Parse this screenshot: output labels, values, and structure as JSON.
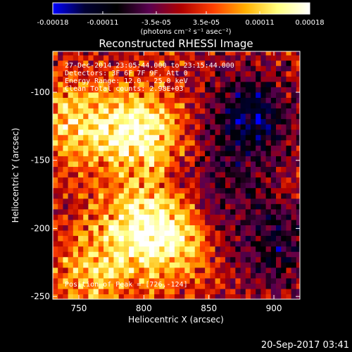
{
  "colorbar": {
    "tick_labels": [
      "-0.00018",
      "-0.00011",
      "-3.5e-05",
      "3.5e-05",
      "0.00011",
      "0.00018"
    ],
    "tick_values": [
      -0.00018,
      -0.00011,
      -3.5e-05,
      3.5e-05,
      0.00011,
      0.00018
    ],
    "range": [
      -0.00018,
      0.00018
    ],
    "unit_label": "(photons cm⁻² s⁻¹ asec⁻²)",
    "colors": [
      "#0000ff",
      "#000033",
      "#000000",
      "#5a0050",
      "#b00000",
      "#ff4000",
      "#ffb000",
      "#ffff80",
      "#ffffff"
    ]
  },
  "chart_data": {
    "type": "heatmap",
    "title": "Reconstructed RHESSI Image",
    "xlabel": "Heliocentric X (arcsec)",
    "ylabel": "Heliocentric Y (arcsec)",
    "xlim": [
      730,
      920
    ],
    "ylim": [
      -252,
      -70
    ],
    "x_ticks": [
      750,
      800,
      850,
      900
    ],
    "y_ticks": [
      -100,
      -150,
      -200,
      -250
    ],
    "x_tick_labels": [
      "750",
      "800",
      "850",
      "900"
    ],
    "y_tick_labels": [
      "-100",
      "-150",
      "-200",
      "-250"
    ],
    "annotations": [
      "27-Dec-2014 23:05:44.000 to 23:15:44.000",
      "Detectors: 3F 6F 7F 9F, Att 0",
      "Energy Range: 12.0 - 25.0 keV",
      "Clean     Total counts: 2.98E+03"
    ],
    "peak_label": "Position of Peak = [726,-124]",
    "peak": [
      726,
      -124
    ],
    "intensity_features": [
      {
        "x": 795,
        "y": -130,
        "level": 0.00016
      },
      {
        "x": 745,
        "y": -125,
        "level": 0.00012
      },
      {
        "x": 815,
        "y": -210,
        "level": 0.00014
      },
      {
        "x": 760,
        "y": -235,
        "level": 0.0001
      },
      {
        "x": 790,
        "y": -195,
        "level": 9e-05
      },
      {
        "x": 880,
        "y": -120,
        "level": -0.00013
      },
      {
        "x": 900,
        "y": -215,
        "level": -9e-05
      },
      {
        "x": 860,
        "y": -170,
        "level": -6e-05
      }
    ]
  },
  "footer": {
    "timestamp": "20-Sep-2017 03:41"
  }
}
